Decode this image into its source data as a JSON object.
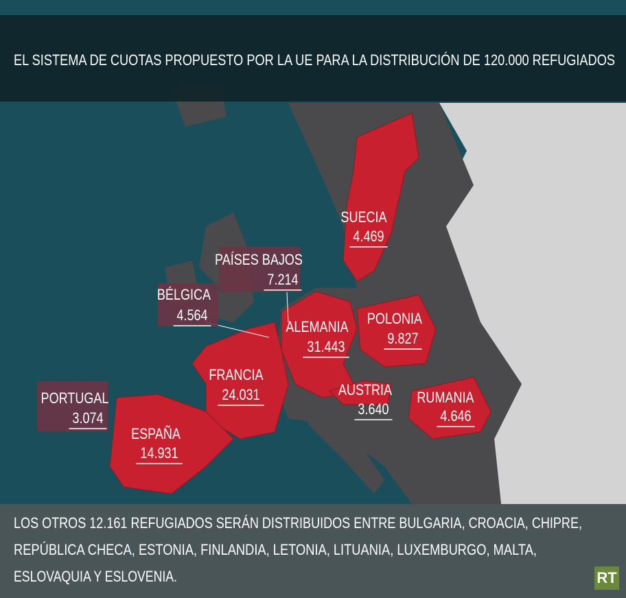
{
  "header": {
    "title": "EL SISTEMA DE CUOTAS PROPUESTO POR LA UE PARA LA DISTRIBUCIÓN DE 120.000 REFUGIADOS"
  },
  "countries": [
    {
      "name": "SUECIA",
      "quota": "4.469"
    },
    {
      "name": "PAÍSES BAJOS",
      "quota": "7.214"
    },
    {
      "name": "BÉLGICA",
      "quota": "4.564"
    },
    {
      "name": "ALEMANIA",
      "quota": "31.443"
    },
    {
      "name": "POLONIA",
      "quota": "9.827"
    },
    {
      "name": "FRANCIA",
      "quota": "24.031"
    },
    {
      "name": "AUSTRIA",
      "quota": "3.640"
    },
    {
      "name": "RUMANIA",
      "quota": "4.646"
    },
    {
      "name": "PORTUGAL",
      "quota": "3.074"
    },
    {
      "name": "ESPAÑA",
      "quota": "14.931"
    }
  ],
  "footer": {
    "lines": [
      "LOS OTROS 12.161 REFUGIADOS SERÁN DISTRIBUIDOS ENTRE BULGARIA, CROACIA, CHIPRE,",
      "REPÚBLICA CHECA, ESTONIA, FINLANDIA, LETONIA, LITUANIA, LUXEMBURGO, MALTA,",
      "ESLOVAQUIA Y ESLOVENIA."
    ],
    "logo": "RT"
  }
}
